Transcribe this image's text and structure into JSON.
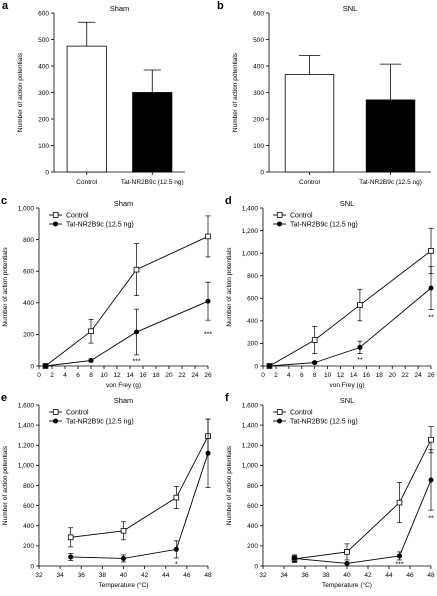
{
  "chart_data": [
    {
      "panel": "a",
      "type": "bar",
      "title": "Sham",
      "ylabel": "Number of action potentials",
      "xlabel": "",
      "ylim": [
        0,
        600
      ],
      "yticks": [
        "0",
        "100",
        "200",
        "300",
        "400",
        "500",
        "600"
      ],
      "categories": [
        "Control",
        "Tat-NR2B9c (12.5 ng)"
      ],
      "values": [
        475,
        300
      ],
      "errors": [
        90,
        85
      ],
      "fills": [
        "#ffffff",
        "#000000"
      ]
    },
    {
      "panel": "b",
      "type": "bar",
      "title": "SNL",
      "ylabel": "Number of action potentials",
      "xlabel": "",
      "ylim": [
        0,
        600
      ],
      "yticks": [
        "0",
        "100",
        "200",
        "300",
        "400",
        "500",
        "600"
      ],
      "categories": [
        "Control",
        "Tat-NR2B9c (12.5 ng)"
      ],
      "values": [
        368,
        272
      ],
      "errors": [
        72,
        135
      ],
      "fills": [
        "#ffffff",
        "#000000"
      ]
    },
    {
      "panel": "c",
      "type": "line",
      "title": "Sham",
      "ylabel": "Number of action potentials",
      "xlabel": "von Frey (g)",
      "xlim": [
        0,
        26
      ],
      "ylim": [
        0,
        1000
      ],
      "xticks": [
        "0",
        "2",
        "4",
        "6",
        "8",
        "10",
        "12",
        "14",
        "16",
        "18",
        "20",
        "22",
        "24",
        "26"
      ],
      "yticks": [
        "0",
        "200",
        "400",
        "600",
        "800",
        "1,000"
      ],
      "series": [
        {
          "name": "Control",
          "marker": "open-square",
          "x": [
            1,
            8,
            15,
            26
          ],
          "y": [
            0,
            220,
            610,
            820
          ],
          "err": [
            0,
            75,
            165,
            130
          ]
        },
        {
          "name": "Tat-NR2B9c (12.5 ng)",
          "marker": "filled-circle",
          "x": [
            1,
            8,
            15,
            26
          ],
          "y": [
            0,
            35,
            215,
            410
          ],
          "err": [
            0,
            10,
            145,
            120
          ]
        }
      ],
      "annotations": [
        {
          "x": 15,
          "y": 30,
          "text": "***"
        },
        {
          "x": 26,
          "y": 200,
          "text": "***"
        }
      ]
    },
    {
      "panel": "d",
      "type": "line",
      "title": "SNL",
      "ylabel": "Number of action potentials",
      "xlabel": "von Frey (g)",
      "xlim": [
        0,
        26
      ],
      "ylim": [
        0,
        1400
      ],
      "xticks": [
        "0",
        "2",
        "4",
        "6",
        "8",
        "10",
        "12",
        "14",
        "16",
        "18",
        "20",
        "22",
        "24",
        "26"
      ],
      "yticks": [
        "0",
        "200",
        "400",
        "600",
        "800",
        "1,000",
        "1,200",
        "1,400"
      ],
      "series": [
        {
          "name": "Control",
          "marker": "open-square",
          "x": [
            1,
            8,
            15,
            26
          ],
          "y": [
            0,
            230,
            540,
            1020
          ],
          "err": [
            0,
            120,
            140,
            200
          ]
        },
        {
          "name": "Tat-NR2B9c (12.5 ng)",
          "marker": "filled-circle",
          "x": [
            1,
            8,
            15,
            26
          ],
          "y": [
            0,
            30,
            165,
            690
          ],
          "err": [
            0,
            10,
            55,
            190
          ]
        }
      ],
      "annotations": [
        {
          "x": 15,
          "y": 55,
          "text": "**"
        },
        {
          "x": 26,
          "y": 430,
          "text": "**"
        }
      ]
    },
    {
      "panel": "e",
      "type": "line",
      "title": "Sham",
      "ylabel": "Number of action potentials",
      "xlabel": "Temperature (°C)",
      "xlim": [
        32,
        48
      ],
      "ylim": [
        0,
        1600
      ],
      "xticks": [
        "32",
        "34",
        "36",
        "38",
        "40",
        "42",
        "44",
        "46",
        "48"
      ],
      "yticks": [
        "0",
        "200",
        "400",
        "600",
        "800",
        "1,000",
        "1,200",
        "1,400",
        "1,600"
      ],
      "series": [
        {
          "name": "Control",
          "marker": "open-square",
          "x": [
            35,
            40,
            45,
            48
          ],
          "y": [
            285,
            350,
            680,
            1290
          ],
          "err": [
            95,
            90,
            110,
            170
          ]
        },
        {
          "name": "Tat-NR2B9c (12.5 ng)",
          "marker": "filled-circle",
          "x": [
            35,
            40,
            45,
            48
          ],
          "y": [
            90,
            75,
            165,
            1120
          ],
          "err": [
            35,
            35,
            85,
            340
          ]
        }
      ],
      "annotations": [
        {
          "x": 45,
          "y": 15,
          "text": "*"
        }
      ]
    },
    {
      "panel": "f",
      "type": "line",
      "title": "SNL",
      "ylabel": "Number of action potentials",
      "xlabel": "Temperature (°C)",
      "xlim": [
        32,
        48
      ],
      "ylim": [
        0,
        1600
      ],
      "xticks": [
        "32",
        "34",
        "36",
        "38",
        "40",
        "42",
        "44",
        "46",
        "48"
      ],
      "yticks": [
        "0",
        "200",
        "400",
        "600",
        "800",
        "1,000",
        "1,200",
        "1,400",
        "1,600"
      ],
      "series": [
        {
          "name": "Control",
          "marker": "open-square",
          "x": [
            35,
            40,
            45,
            48
          ],
          "y": [
            70,
            140,
            630,
            1255
          ],
          "err": [
            35,
            80,
            200,
            130
          ]
        },
        {
          "name": "Tat-NR2B9c (12.5 ng)",
          "marker": "filled-circle",
          "x": [
            35,
            40,
            45,
            48
          ],
          "y": [
            75,
            25,
            100,
            855
          ],
          "err": [
            35,
            10,
            40,
            300
          ]
        }
      ],
      "annotations": [
        {
          "x": 45,
          "y": 15,
          "text": "***"
        },
        {
          "x": 48,
          "y": 470,
          "text": "**"
        }
      ]
    }
  ]
}
